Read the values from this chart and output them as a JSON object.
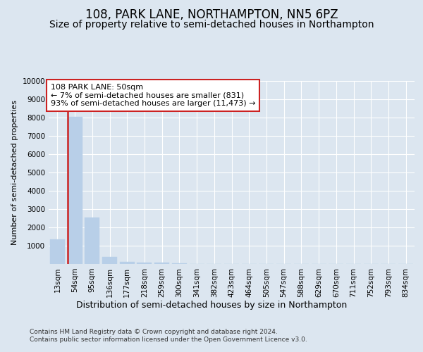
{
  "title": "108, PARK LANE, NORTHAMPTON, NN5 6PZ",
  "subtitle": "Size of property relative to semi-detached houses in Northampton",
  "xlabel": "Distribution of semi-detached houses by size in Northampton",
  "ylabel": "Number of semi-detached properties",
  "categories": [
    "13sqm",
    "54sqm",
    "95sqm",
    "136sqm",
    "177sqm",
    "218sqm",
    "259sqm",
    "300sqm",
    "341sqm",
    "382sqm",
    "423sqm",
    "464sqm",
    "505sqm",
    "547sqm",
    "588sqm",
    "629sqm",
    "670sqm",
    "711sqm",
    "752sqm",
    "793sqm",
    "834sqm"
  ],
  "values": [
    1330,
    8030,
    2530,
    370,
    130,
    90,
    75,
    55,
    0,
    0,
    0,
    0,
    0,
    0,
    0,
    0,
    0,
    0,
    0,
    0,
    0
  ],
  "bar_color": "#b8cfe8",
  "bar_edge_color": "#b8cfe8",
  "highlight_color": "#cc2222",
  "annotation_text": "108 PARK LANE: 50sqm\n← 7% of semi-detached houses are smaller (831)\n93% of semi-detached houses are larger (11,473) →",
  "annotation_box_facecolor": "#ffffff",
  "annotation_box_edgecolor": "#cc2222",
  "ylim": [
    0,
    10000
  ],
  "yticks": [
    0,
    1000,
    2000,
    3000,
    4000,
    5000,
    6000,
    7000,
    8000,
    9000,
    10000
  ],
  "background_color": "#dce6f0",
  "plot_bg_color": "#dce6f0",
  "footer": "Contains HM Land Registry data © Crown copyright and database right 2024.\nContains public sector information licensed under the Open Government Licence v3.0.",
  "title_fontsize": 12,
  "subtitle_fontsize": 10,
  "xlabel_fontsize": 9,
  "ylabel_fontsize": 8,
  "tick_fontsize": 7.5,
  "annotation_fontsize": 8
}
